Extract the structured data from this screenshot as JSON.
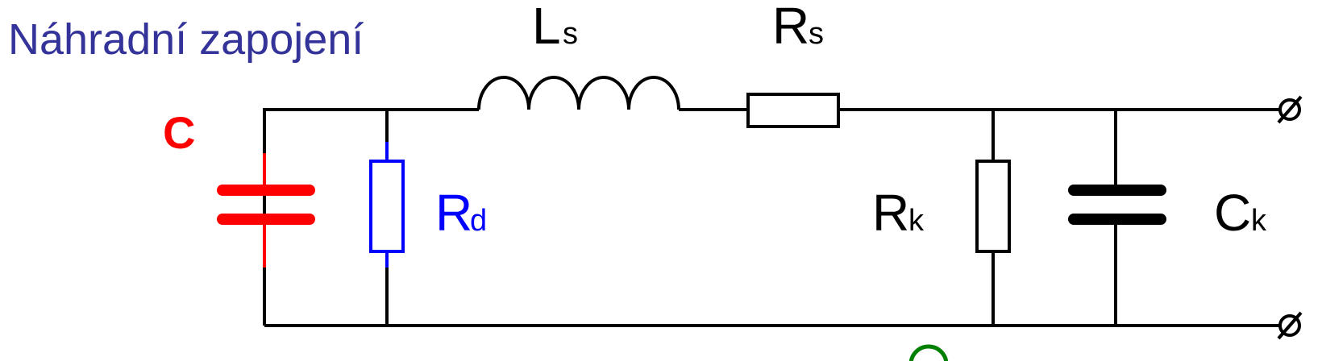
{
  "title": "Náhradní zapojení",
  "labels": {
    "c": "C",
    "rd_main": "R",
    "rd_sub": "d",
    "ls_main": "L",
    "ls_sub": "s",
    "rs_main": "R",
    "rs_sub": "s",
    "rk_main": "R",
    "rk_sub": "k",
    "ck_main": "C",
    "ck_sub": "k"
  },
  "colors": {
    "title": "#333399",
    "capacitor_c": "#ff0000",
    "resistor_rd": "#0000ff",
    "wire": "#000000",
    "bottom_arc": "#008000"
  }
}
